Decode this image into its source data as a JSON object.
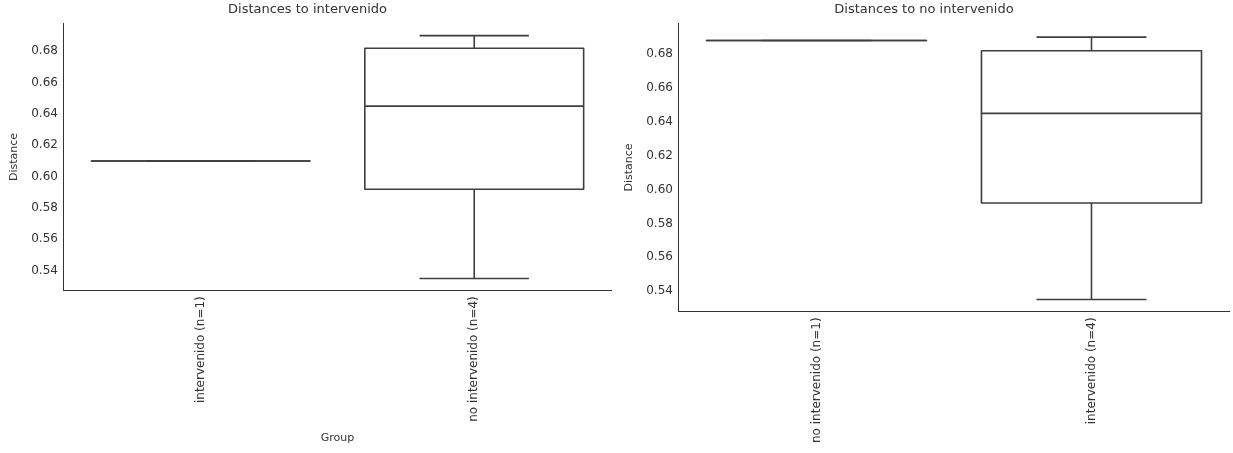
{
  "chart_data": [
    {
      "type": "box",
      "title": "Distances to intervenido",
      "xlabel": "Group",
      "ylabel": "Distance",
      "categories": [
        "intervenido (n=1)",
        "no intervenido (n=4)"
      ],
      "colors": [
        "#3f3f3f",
        "#ffffff"
      ],
      "boxes": [
        {
          "low": 0.61,
          "q1": 0.61,
          "median": 0.61,
          "q3": 0.61,
          "high": 0.61
        },
        {
          "low": 0.535,
          "q1": 0.592,
          "median": 0.645,
          "q3": 0.682,
          "high": 0.69
        }
      ],
      "ylim": [
        0.5275,
        0.6977
      ],
      "yticks": [
        0.54,
        0.56,
        0.58,
        {
          "value": 0.6,
          "label": "0.60"
        },
        0.62,
        0.64,
        0.66,
        0.68
      ],
      "grid": false,
      "legend": false
    },
    {
      "type": "box",
      "title": "Distances to no intervenido",
      "ylabel": "Distance",
      "categories": [
        "no intervenido (n=1)",
        "intervenido (n=4)"
      ],
      "colors": [
        "#3f3f3f",
        "#ffffff"
      ],
      "boxes": [
        {
          "low": 0.688,
          "q1": 0.688,
          "median": 0.688,
          "q3": 0.688,
          "high": 0.688
        },
        {
          "low": 0.535,
          "q1": 0.592,
          "median": 0.645,
          "q3": 0.682,
          "high": 0.69
        }
      ],
      "ylim": [
        0.528,
        0.698
      ],
      "yticks": [
        0.54,
        0.56,
        0.58,
        {
          "value": 0.6,
          "label": "0.60"
        },
        0.62,
        0.64,
        0.66,
        0.68
      ],
      "grid": false,
      "legend": false
    }
  ]
}
